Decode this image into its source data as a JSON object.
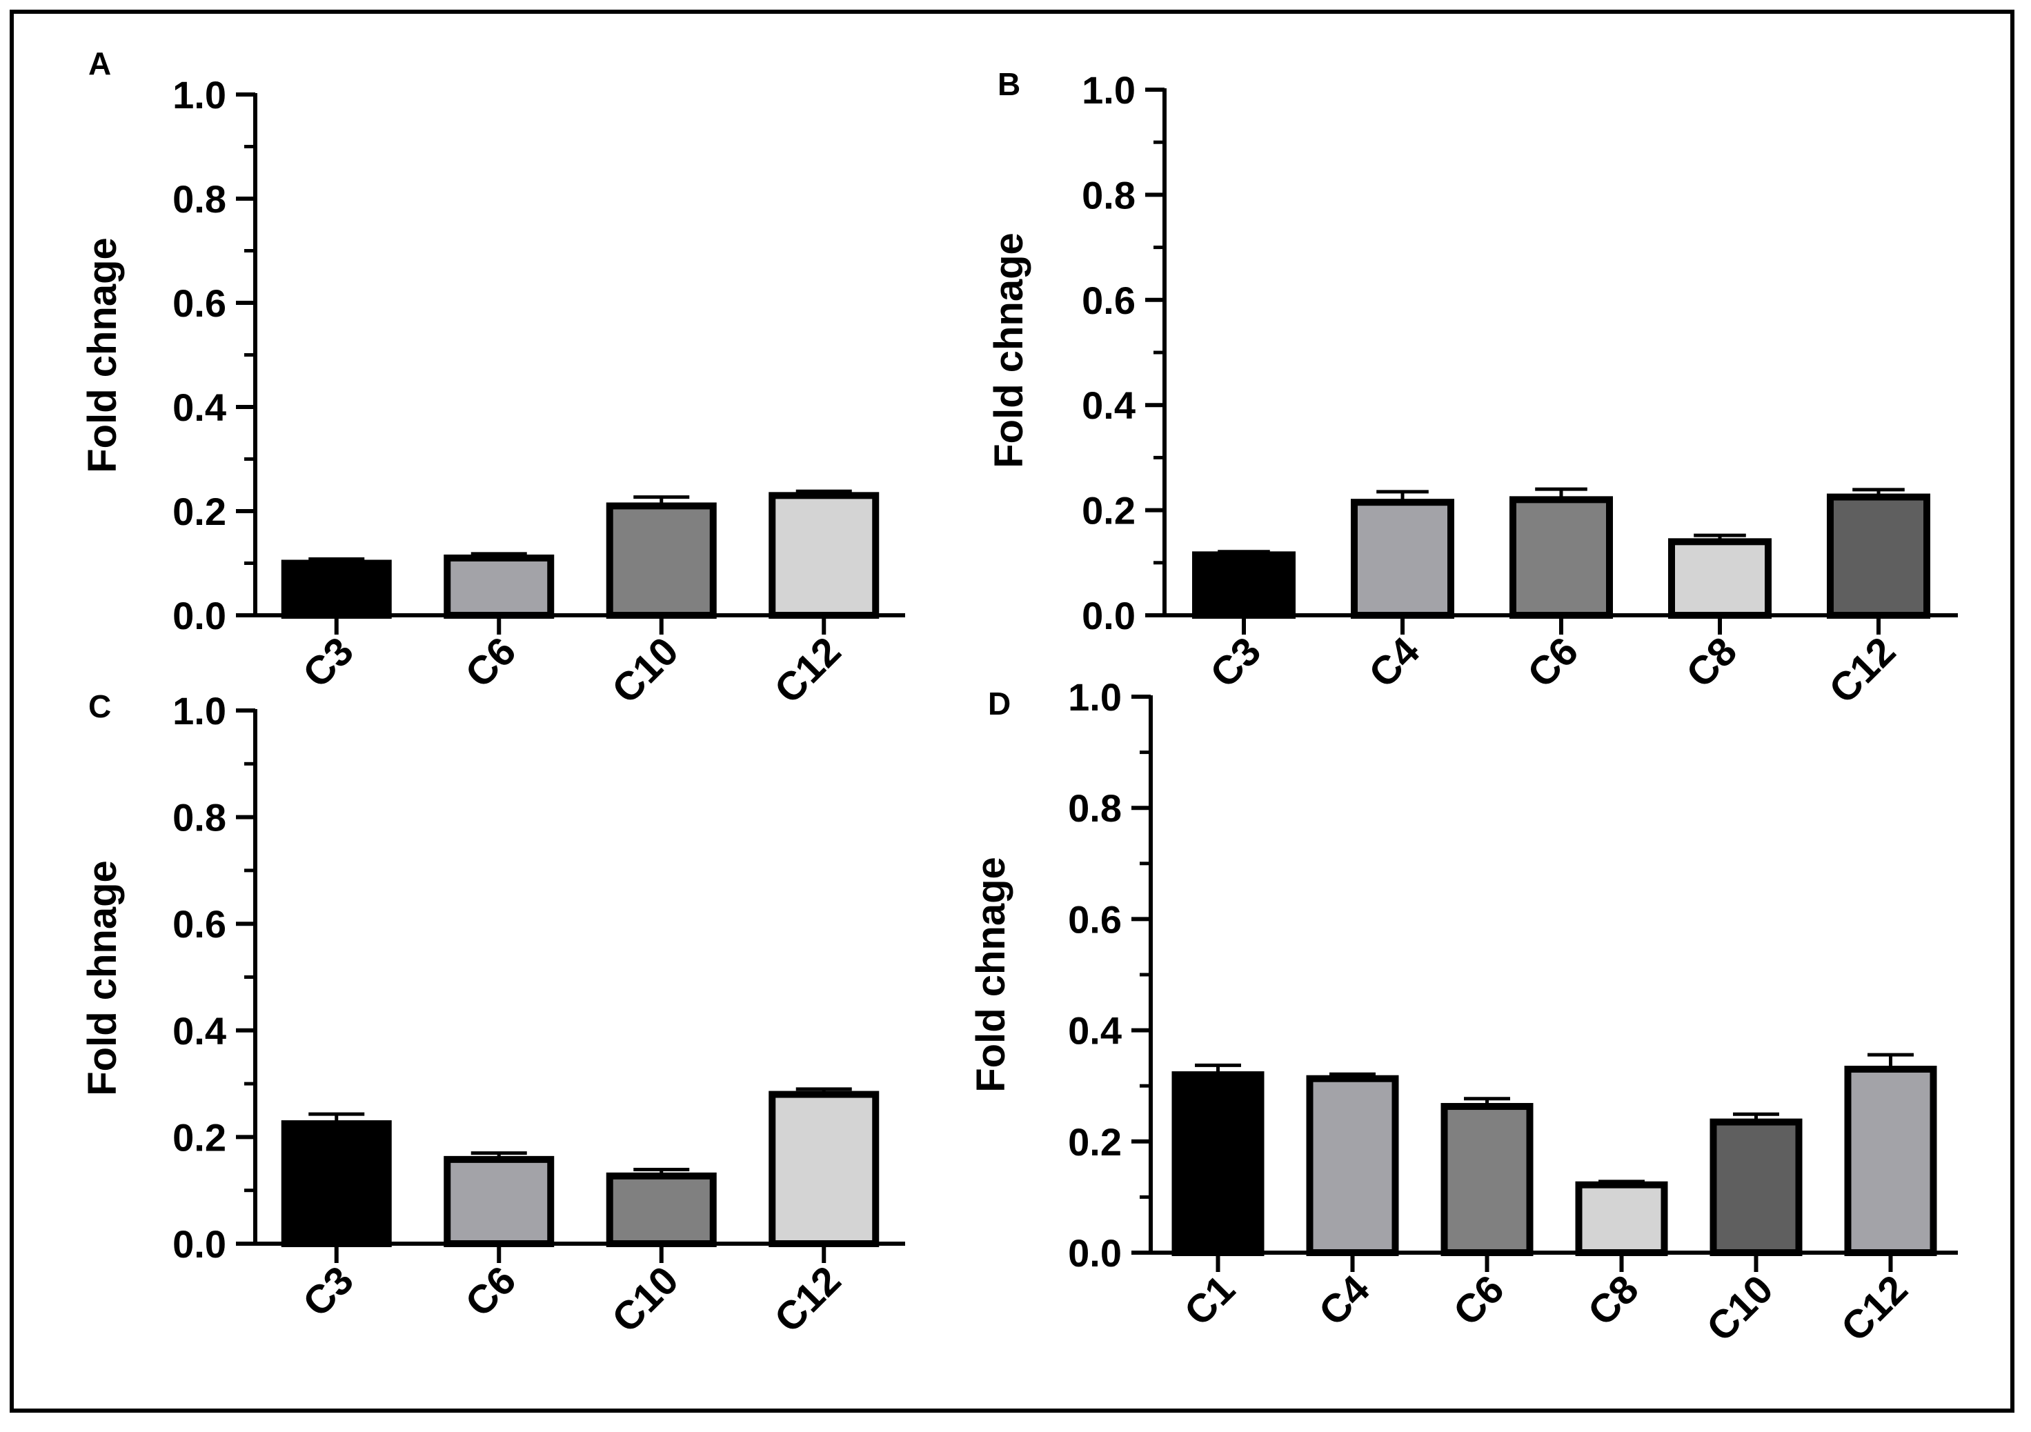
{
  "chart_data": [
    {
      "panel": "A",
      "type": "bar",
      "ylabel": "Fold chnage",
      "xlabel": "",
      "ylim": [
        0,
        1.0
      ],
      "yticks": [
        "0.0",
        "0.2",
        "0.4",
        "0.6",
        "0.8",
        "1.0"
      ],
      "categories": [
        "C3",
        "C6",
        "C10",
        "C12"
      ],
      "values": [
        0.1,
        0.11,
        0.21,
        0.23
      ],
      "errors": [
        0.008,
        0.008,
        0.017,
        0.008
      ],
      "colors": [
        "#000000",
        "#a3a3a8",
        "#808080",
        "#d4d4d4"
      ]
    },
    {
      "panel": "B",
      "type": "bar",
      "ylabel": "Fold chnage",
      "xlabel": "",
      "ylim": [
        0,
        1.0
      ],
      "yticks": [
        "0.0",
        "0.2",
        "0.4",
        "0.6",
        "0.8",
        "1.0"
      ],
      "categories": [
        "C3",
        "C4",
        "C6",
        "C8",
        "C12"
      ],
      "values": [
        0.115,
        0.215,
        0.22,
        0.14,
        0.225
      ],
      "errors": [
        0.006,
        0.02,
        0.02,
        0.012,
        0.014
      ],
      "colors": [
        "#000000",
        "#a3a3a8",
        "#808080",
        "#d4d4d4",
        "#5f5f5f"
      ]
    },
    {
      "panel": "C",
      "type": "bar",
      "ylabel": "Fold chnage",
      "xlabel": "",
      "ylim": [
        0,
        1.0
      ],
      "yticks": [
        "0.0",
        "0.2",
        "0.4",
        "0.6",
        "0.8",
        "1.0"
      ],
      "categories": [
        "C3",
        "C6",
        "C10",
        "C12"
      ],
      "values": [
        0.225,
        0.158,
        0.127,
        0.28
      ],
      "errors": [
        0.018,
        0.012,
        0.012,
        0.01
      ],
      "colors": [
        "#000000",
        "#a3a3a8",
        "#808080",
        "#d4d4d4"
      ]
    },
    {
      "panel": "D",
      "type": "bar",
      "ylabel": "Fold chnage",
      "xlabel": "",
      "ylim": [
        0,
        1.0
      ],
      "yticks": [
        "0.0",
        "0.2",
        "0.4",
        "0.6",
        "0.8",
        "1.0"
      ],
      "categories": [
        "C1",
        "C4",
        "C6",
        "C8",
        "C10",
        "C12"
      ],
      "values": [
        0.32,
        0.313,
        0.263,
        0.122,
        0.235,
        0.33
      ],
      "errors": [
        0.017,
        0.008,
        0.014,
        0.006,
        0.014,
        0.026
      ],
      "colors": [
        "#000000",
        "#a3a3a8",
        "#808080",
        "#d4d4d4",
        "#5f5f5f",
        "#a3a3a8"
      ]
    }
  ]
}
